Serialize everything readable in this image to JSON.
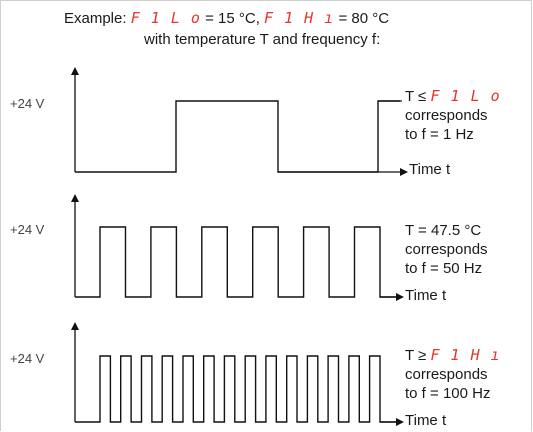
{
  "header": {
    "line1_prefix": "Example:",
    "param_low_code": "F 1 L o",
    "line1_mid": "= 15 °C,",
    "param_high_code": "F 1 H ı",
    "line1_suffix": "= 80 °C",
    "line2": "with temperature T and frequency f:"
  },
  "colors": {
    "signal": "#111111",
    "param_code": "#e8342b",
    "frame": "#cfcfcf"
  },
  "panels": [
    {
      "voltage_label": "+24 V",
      "time_label": "Time t",
      "condition_prefix": "T  ≤",
      "condition_code": "F 1 L o",
      "condition_text": "",
      "line2": "corresponds",
      "line3": "to f = 1 Hz",
      "frequency_hz": 1,
      "pulses": 1
    },
    {
      "voltage_label": "+24 V",
      "time_label": "Time t",
      "condition_prefix": "",
      "condition_code": "",
      "condition_text": "T = 47.5 °C",
      "line2": "corresponds",
      "line3": "to f = 50 Hz",
      "frequency_hz": 50,
      "pulses": 6
    },
    {
      "voltage_label": "+24 V",
      "time_label": "Time t",
      "condition_prefix": "T  ≥",
      "condition_code": "F 1 H ı",
      "condition_text": "",
      "line2": "corresponds",
      "line3": "to f = 100 Hz",
      "frequency_hz": 100,
      "pulses": 14
    }
  ]
}
